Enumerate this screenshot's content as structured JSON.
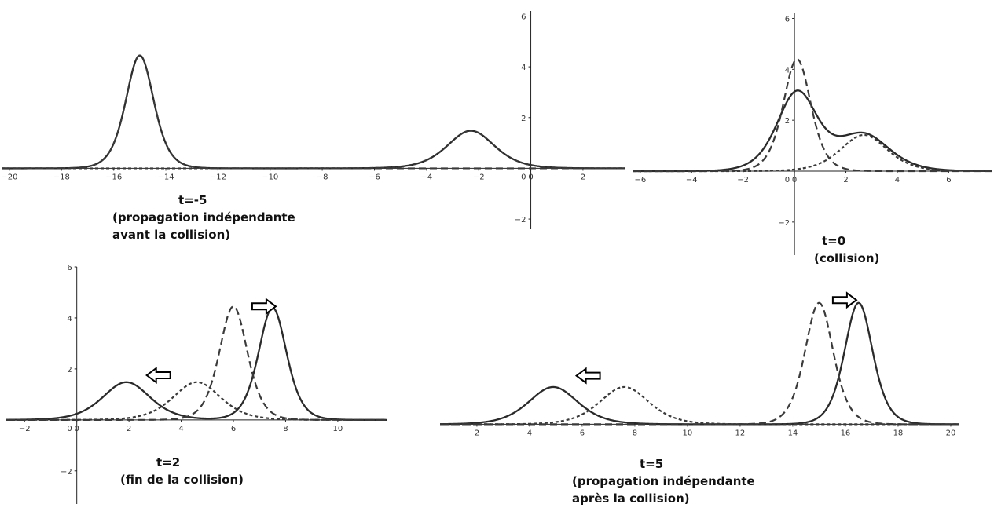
{
  "chart_data": [
    {
      "type": "line",
      "grid": false,
      "xlim": [
        -20.3,
        3.6
      ],
      "ylim": [
        -2.4,
        6.2
      ],
      "xticks": [
        -20,
        -18,
        -16,
        -14,
        -12,
        -10,
        -8,
        -6,
        -4,
        -2,
        0,
        2
      ],
      "yticks": [
        -2,
        2,
        4,
        6
      ],
      "series": [
        {
          "style": "solid",
          "color": "#2a2a2a",
          "peaks": [
            {
              "amp": 4.45,
              "center": -15.0,
              "width": 0.72
            },
            {
              "amp": 1.48,
              "center": -2.3,
              "width": 1.22
            }
          ]
        },
        {
          "style": "dashed",
          "color": "#3a3a3a",
          "peaks": [
            {
              "amp": 4.45,
              "center": -15.0,
              "width": 0.72
            }
          ]
        },
        {
          "style": "dotted",
          "color": "#3a3a3a",
          "peaks": [
            {
              "amp": 1.48,
              "center": -2.3,
              "width": 1.22
            }
          ]
        }
      ],
      "caption": [
        "t=-5",
        "(propagation indépendante",
        "avant la collision)"
      ]
    },
    {
      "type": "line",
      "grid": false,
      "xlim": [
        -6.3,
        7.7
      ],
      "ylim": [
        -3.3,
        6.2
      ],
      "xticks": [
        -6,
        -4,
        -2,
        0,
        2,
        4,
        6
      ],
      "yticks": [
        -2,
        2,
        4,
        6
      ],
      "series": [
        {
          "style": "solid",
          "color": "#2a2a2a",
          "peaks": [
            {
              "amp": 3.05,
              "center": 0.1,
              "width": 1.05
            },
            {
              "amp": 1.42,
              "center": 2.7,
              "width": 1.35
            }
          ]
        },
        {
          "style": "dashed",
          "color": "#3a3a3a",
          "peaks": [
            {
              "amp": 4.4,
              "center": 0.1,
              "width": 0.72
            }
          ]
        },
        {
          "style": "dotted",
          "color": "#3a3a3a",
          "peaks": [
            {
              "amp": 1.42,
              "center": 2.7,
              "width": 1.22
            }
          ]
        }
      ],
      "caption": [
        "t=0",
        "(collision)"
      ]
    },
    {
      "type": "line",
      "grid": false,
      "xlim": [
        -2.7,
        11.9
      ],
      "ylim": [
        -3.3,
        6.0
      ],
      "xticks": [
        -2,
        0,
        2,
        4,
        6,
        8,
        10
      ],
      "yticks": [
        -2,
        2,
        4,
        6
      ],
      "series": [
        {
          "style": "solid",
          "color": "#2a2a2a",
          "peaks": [
            {
              "amp": 4.4,
              "center": 7.5,
              "width": 0.72
            },
            {
              "amp": 1.48,
              "center": 1.9,
              "width": 1.22
            }
          ]
        },
        {
          "style": "dashed",
          "color": "#3a3a3a",
          "peaks": [
            {
              "amp": 4.45,
              "center": 6.0,
              "width": 0.72
            }
          ]
        },
        {
          "style": "dotted",
          "color": "#3a3a3a",
          "peaks": [
            {
              "amp": 1.48,
              "center": 4.6,
              "width": 1.22
            }
          ]
        }
      ],
      "annotations": [
        {
          "type": "arrow",
          "direction": "left",
          "x": 3.1,
          "y": 1.75
        },
        {
          "type": "arrow",
          "direction": "right",
          "x": 7.2,
          "y": 4.45
        }
      ],
      "caption": [
        "t=2",
        "(fin de la collision)"
      ]
    },
    {
      "type": "line",
      "grid": false,
      "xlim": [
        0.6,
        20.3
      ],
      "ylim": [
        -0.1,
        4.6
      ],
      "xticks": [
        2,
        4,
        6,
        8,
        10,
        12,
        14,
        16,
        18,
        20
      ],
      "series": [
        {
          "style": "solid",
          "color": "#2a2a2a",
          "peaks": [
            {
              "amp": 4.3,
              "center": 16.5,
              "width": 0.72
            },
            {
              "amp": 1.32,
              "center": 4.9,
              "width": 1.25
            }
          ]
        },
        {
          "style": "dashed",
          "color": "#3a3a3a",
          "peaks": [
            {
              "amp": 4.3,
              "center": 15.0,
              "width": 0.72
            }
          ]
        },
        {
          "style": "dotted",
          "color": "#3a3a3a",
          "peaks": [
            {
              "amp": 1.32,
              "center": 7.6,
              "width": 1.25
            }
          ]
        }
      ],
      "annotations": [
        {
          "type": "arrow",
          "direction": "left",
          "x": 6.2,
          "y": 1.72
        },
        {
          "type": "arrow",
          "direction": "right",
          "x": 16.0,
          "y": 4.4
        }
      ],
      "caption": [
        "t=5",
        "(propagation indépendante",
        "après la collision)"
      ]
    }
  ]
}
